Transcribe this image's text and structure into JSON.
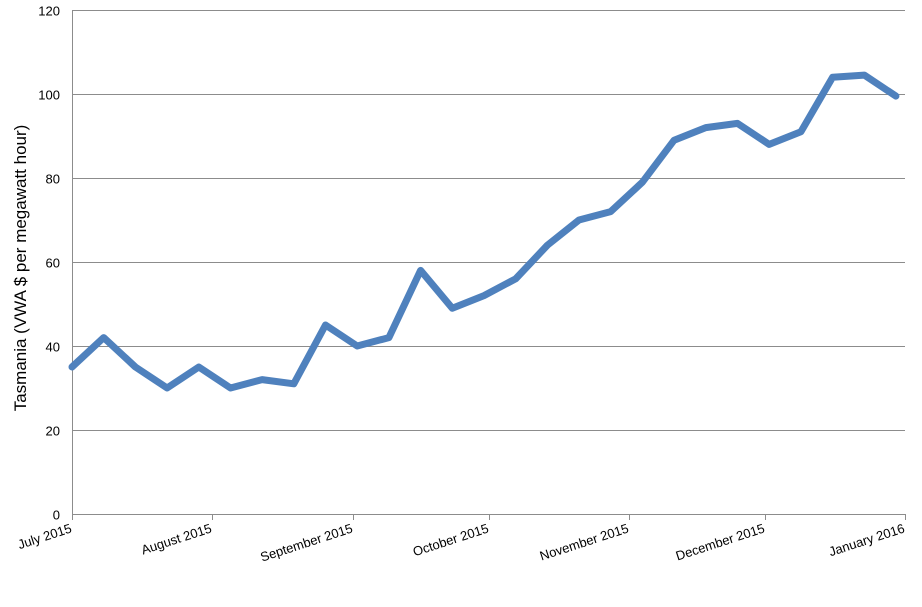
{
  "chart_data": {
    "type": "line",
    "ylabel": "Tasmania (VWA $ per megawatt hour)",
    "xlabel": "",
    "ylim": [
      0,
      120
    ],
    "y_ticks": [
      0,
      20,
      40,
      60,
      80,
      100,
      120
    ],
    "grid": true,
    "x_ticks": [
      {
        "date": "2015-07-01",
        "label": "July 2015"
      },
      {
        "date": "2015-08-01",
        "label": "August 2015"
      },
      {
        "date": "2015-09-01",
        "label": "September 2015"
      },
      {
        "date": "2015-10-01",
        "label": "October 2015"
      },
      {
        "date": "2015-11-01",
        "label": "November 2015"
      },
      {
        "date": "2015-12-01",
        "label": "December 2015"
      },
      {
        "date": "2016-01-01",
        "label": "January 2016"
      }
    ],
    "series": [
      {
        "color": "#4f81bd",
        "points": [
          {
            "x": "2015-07-01",
            "y": 35
          },
          {
            "x": "2015-07-08",
            "y": 42
          },
          {
            "x": "2015-07-15",
            "y": 35
          },
          {
            "x": "2015-07-22",
            "y": 30
          },
          {
            "x": "2015-07-29",
            "y": 35
          },
          {
            "x": "2015-08-05",
            "y": 30
          },
          {
            "x": "2015-08-12",
            "y": 32
          },
          {
            "x": "2015-08-19",
            "y": 31
          },
          {
            "x": "2015-08-26",
            "y": 45
          },
          {
            "x": "2015-09-02",
            "y": 40
          },
          {
            "x": "2015-09-09",
            "y": 42
          },
          {
            "x": "2015-09-16",
            "y": 58
          },
          {
            "x": "2015-09-23",
            "y": 49
          },
          {
            "x": "2015-09-30",
            "y": 52
          },
          {
            "x": "2015-10-07",
            "y": 56
          },
          {
            "x": "2015-10-14",
            "y": 64
          },
          {
            "x": "2015-10-21",
            "y": 70
          },
          {
            "x": "2015-10-28",
            "y": 72
          },
          {
            "x": "2015-11-04",
            "y": 79
          },
          {
            "x": "2015-11-11",
            "y": 89
          },
          {
            "x": "2015-11-18",
            "y": 92
          },
          {
            "x": "2015-11-25",
            "y": 93
          },
          {
            "x": "2015-12-02",
            "y": 88
          },
          {
            "x": "2015-12-09",
            "y": 91
          },
          {
            "x": "2015-12-16",
            "y": 104
          },
          {
            "x": "2015-12-23",
            "y": 104.5
          },
          {
            "x": "2015-12-30",
            "y": 99.5
          }
        ]
      }
    ]
  }
}
